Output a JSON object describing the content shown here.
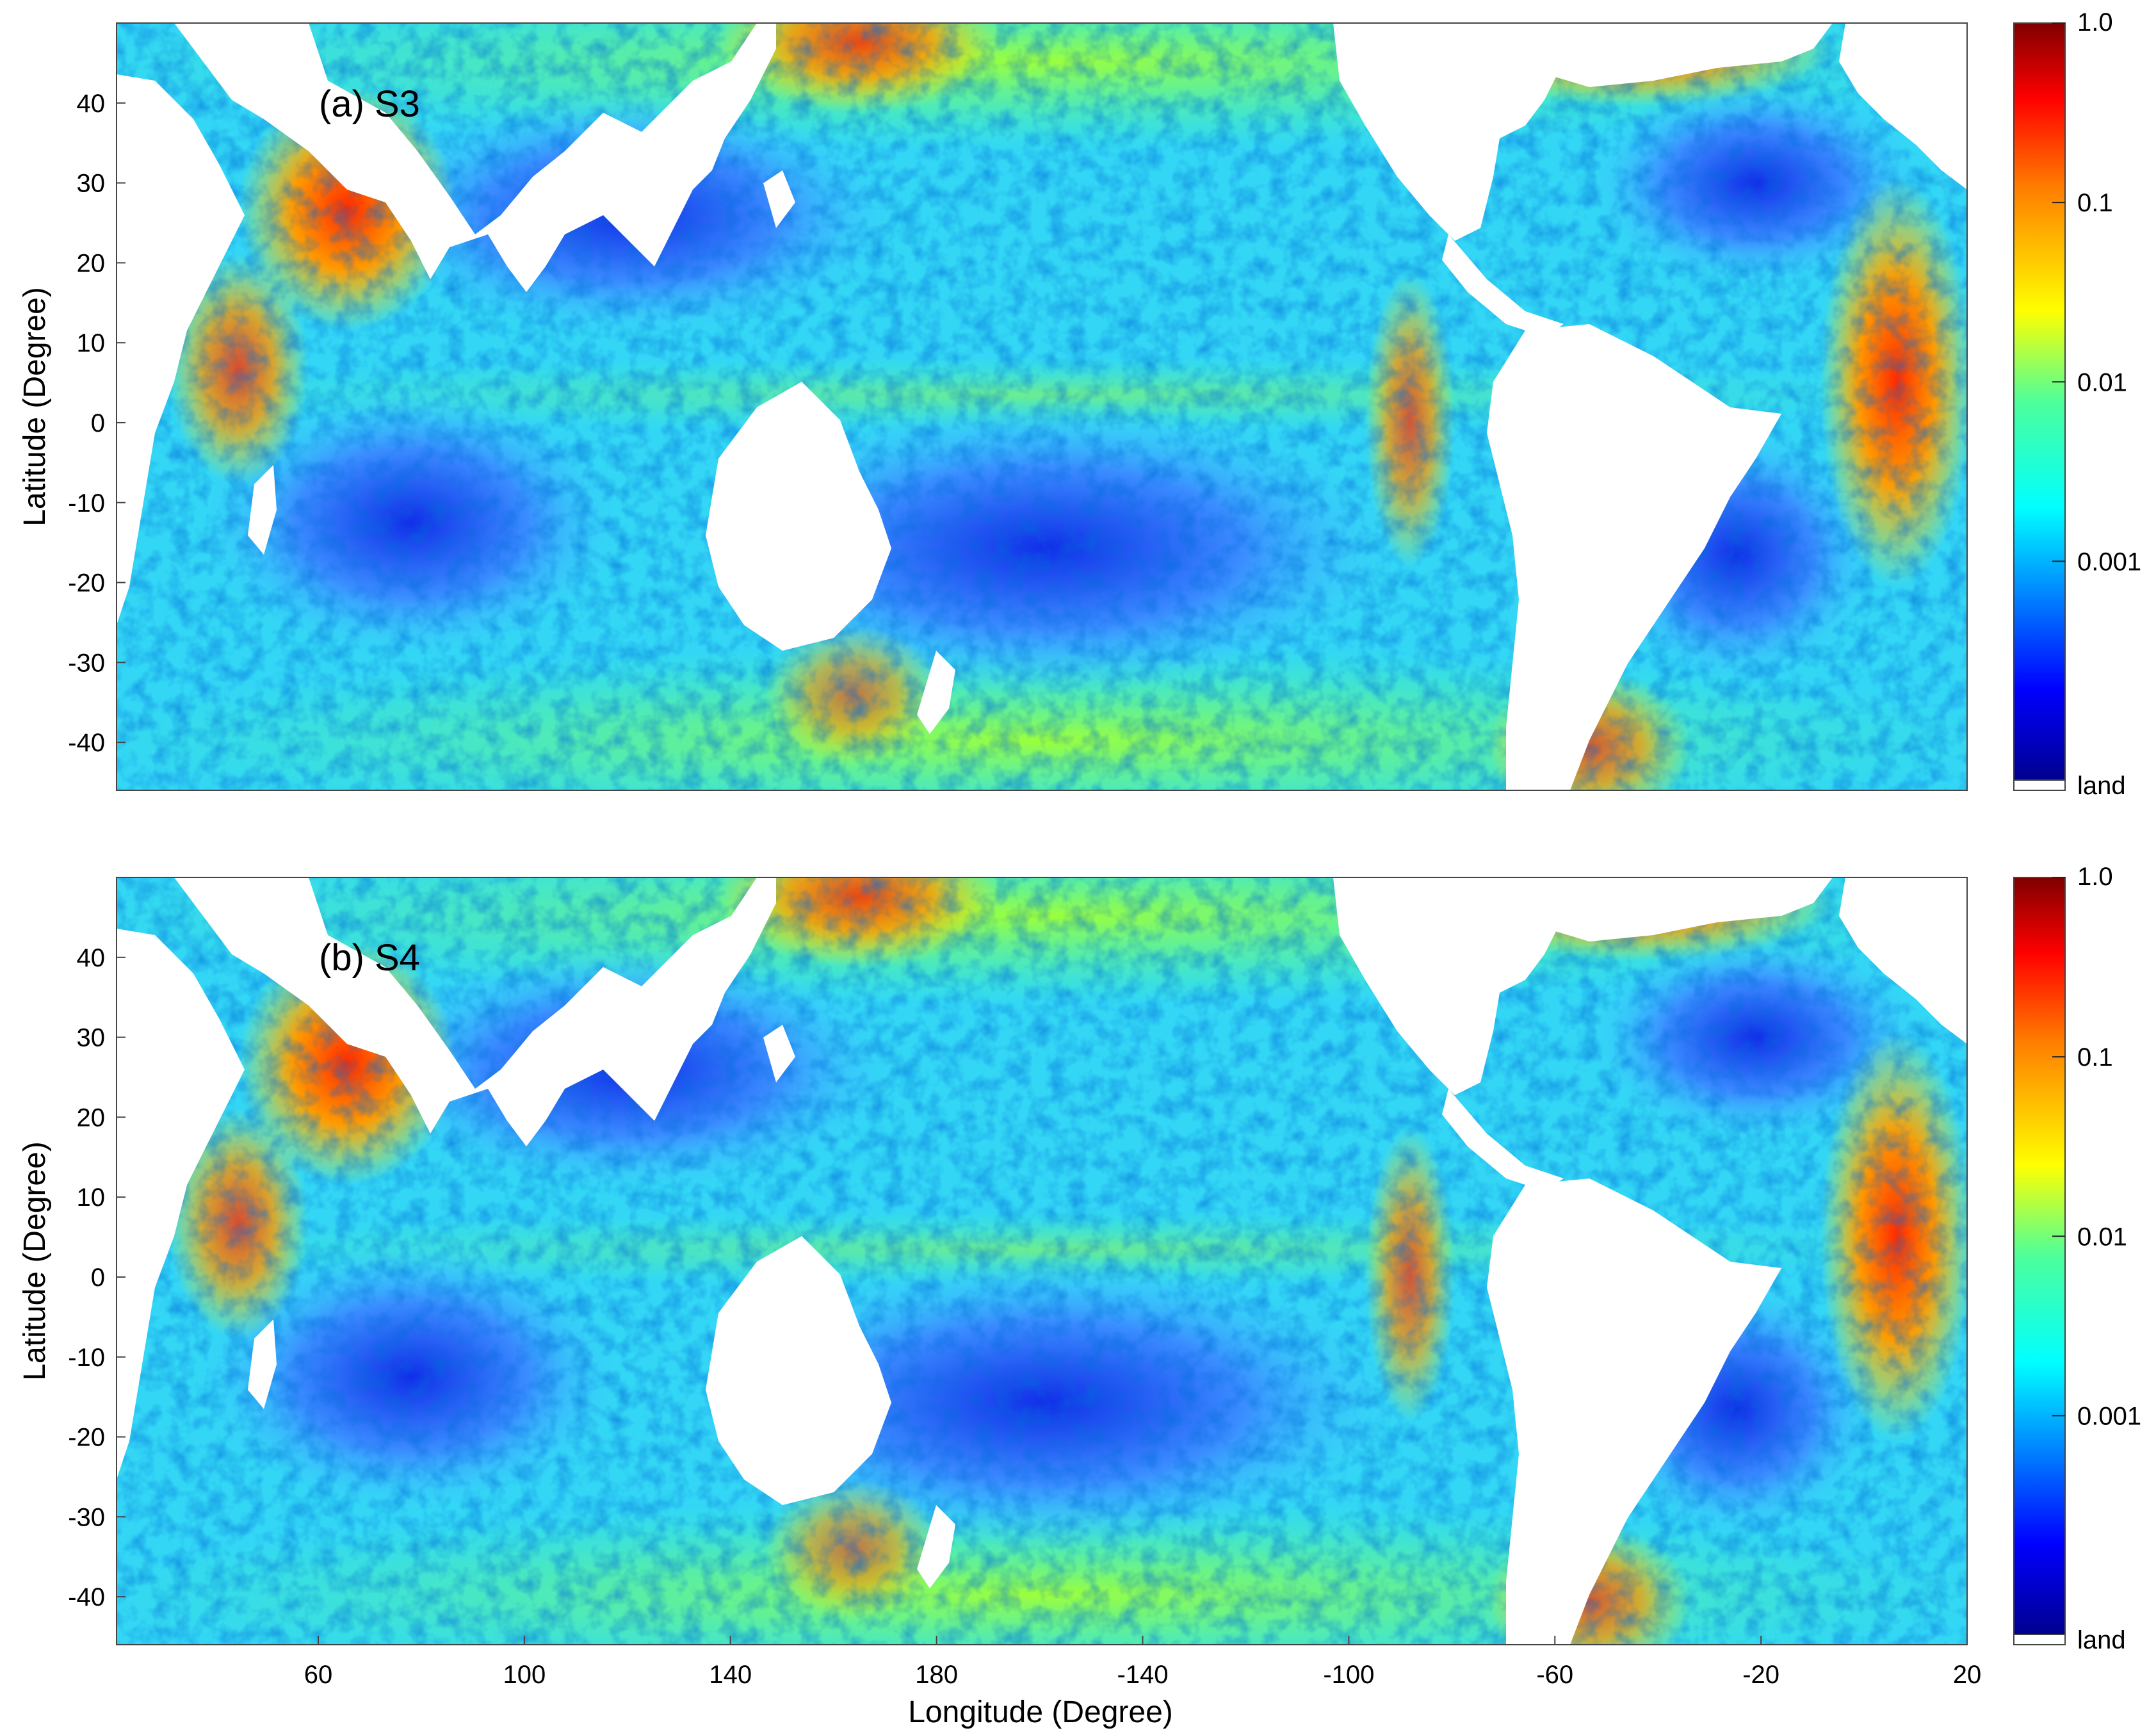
{
  "chart_data": [
    {
      "type": "heatmap",
      "panel_label": "(a) S3",
      "xlabel": "",
      "ylabel": "Latitude (Degree)",
      "xlim": [
        -5,
        20
      ],
      "ylim": [
        -46,
        50
      ],
      "xticks": [],
      "yticks": [
        40,
        30,
        20,
        10,
        0,
        -10,
        -20,
        -30,
        -40
      ],
      "colorbar": {
        "scale": "log",
        "ticks": [
          "1.0",
          "0.1",
          "0.01",
          "0.001"
        ],
        "land_label": "land",
        "colormap": [
          "#00008f",
          "#0000ff",
          "#0080ff",
          "#00ffff",
          "#80ff80",
          "#ffff00",
          "#ff8000",
          "#ff0000",
          "#800000"
        ]
      },
      "land_color": "#ffffff"
    },
    {
      "type": "heatmap",
      "panel_label": "(b) S4",
      "xlabel": "Longitude (Degree)",
      "ylabel": "Latitude (Degree)",
      "xlim": [
        -5,
        20
      ],
      "ylim": [
        -46,
        50
      ],
      "xticks": [
        "60",
        "100",
        "140",
        "180",
        "-140",
        "-100",
        "-60",
        "-20",
        "20"
      ],
      "yticks": [
        40,
        30,
        20,
        10,
        0,
        -10,
        -20,
        -30,
        -40
      ],
      "colorbar": {
        "scale": "log",
        "ticks": [
          "1.0",
          "0.1",
          "0.01",
          "0.001"
        ],
        "land_label": "land",
        "colormap": [
          "#00008f",
          "#0000ff",
          "#0080ff",
          "#00ffff",
          "#80ff80",
          "#ffff00",
          "#ff8000",
          "#ff0000",
          "#800000"
        ]
      },
      "land_color": "#ffffff"
    }
  ]
}
